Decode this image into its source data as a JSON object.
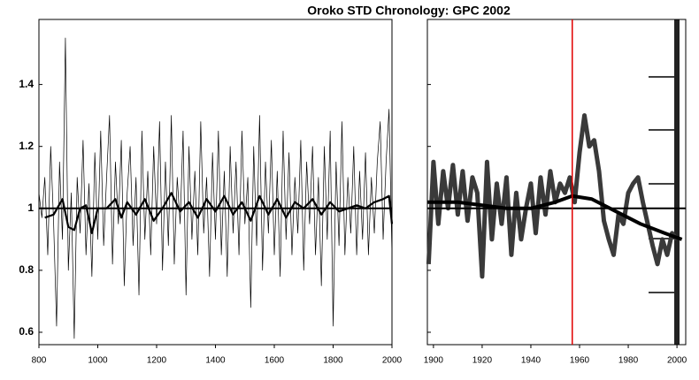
{
  "chart_data": [
    {
      "type": "line",
      "title": "Oroko STD Chronology: GPC 2002",
      "xlim": [
        800,
        2000
      ],
      "ylim": [
        0.56,
        1.61
      ],
      "xticks": [
        800,
        1000,
        1200,
        1400,
        1600,
        1800,
        2000
      ],
      "yticks": [
        0.6,
        0.8,
        {
          "value": 1,
          "label": "1"
        },
        1.2,
        1.4
      ],
      "ytick_labels": true,
      "hline": 1,
      "series": [
        {
          "color": "#000000",
          "width": 0.7,
          "x": [
            800,
            810,
            820,
            830,
            840,
            850,
            860,
            870,
            880,
            890,
            900,
            910,
            920,
            930,
            940,
            950,
            960,
            970,
            980,
            990,
            1000,
            1010,
            1020,
            1030,
            1040,
            1050,
            1060,
            1070,
            1080,
            1090,
            1100,
            1110,
            1120,
            1130,
            1140,
            1150,
            1160,
            1170,
            1180,
            1190,
            1200,
            1210,
            1220,
            1230,
            1240,
            1250,
            1260,
            1270,
            1280,
            1290,
            1300,
            1310,
            1320,
            1330,
            1340,
            1350,
            1360,
            1370,
            1380,
            1390,
            1400,
            1410,
            1420,
            1430,
            1440,
            1450,
            1460,
            1470,
            1480,
            1490,
            1500,
            1510,
            1520,
            1530,
            1540,
            1550,
            1560,
            1570,
            1580,
            1590,
            1600,
            1610,
            1620,
            1630,
            1640,
            1650,
            1660,
            1670,
            1680,
            1690,
            1700,
            1710,
            1720,
            1730,
            1740,
            1750,
            1760,
            1770,
            1780,
            1790,
            1800,
            1810,
            1820,
            1830,
            1840,
            1850,
            1860,
            1870,
            1880,
            1890,
            1900,
            1910,
            1920,
            1930,
            1940,
            1950,
            1960,
            1970,
            1980,
            1990,
            2000
          ],
          "values": [
            1.05,
            0.97,
            1.1,
            0.85,
            1.2,
            0.95,
            0.62,
            1.15,
            0.9,
            1.55,
            0.8,
            1.05,
            0.58,
            1.1,
            0.92,
            1.22,
            0.85,
            1.08,
            0.78,
            1.18,
            0.9,
            1.25,
            0.88,
            1.1,
            1.3,
            0.82,
            1.15,
            0.95,
            1.22,
            0.75,
            1.05,
            1.2,
            0.88,
            1.1,
            0.72,
            1.25,
            0.9,
            1.12,
            0.85,
            1.2,
            0.95,
            1.28,
            0.8,
            1.15,
            0.88,
            1.3,
            0.82,
            1.1,
            0.95,
            1.25,
            0.72,
            1.2,
            0.9,
            1.12,
            0.85,
            1.28,
            0.92,
            1.1,
            0.78,
            1.18,
            0.9,
            1.25,
            0.85,
            1.12,
            0.78,
            1.2,
            0.92,
            1.15,
            0.85,
            1.25,
            0.95,
            1.1,
            0.68,
            1.2,
            0.88,
            1.3,
            0.8,
            1.15,
            0.92,
            1.22,
            0.85,
            1.12,
            0.78,
            1.25,
            0.9,
            1.18,
            0.85,
            1.1,
            0.92,
            1.22,
            0.8,
            1.15,
            0.95,
            1.2,
            0.85,
            1.1,
            0.75,
            1.2,
            0.9,
            1.25,
            0.62,
            1.15,
            0.88,
            1.28,
            0.85,
            1.1,
            0.92,
            1.2,
            0.85,
            1.12,
            0.9,
            1.18,
            0.85,
            1.1,
            0.92,
            1.15,
            1.28,
            0.9,
            1.15,
            1.32,
            0.85
          ]
        },
        {
          "color": "#000000",
          "width": 2.2,
          "x": [
            820,
            850,
            880,
            900,
            920,
            940,
            960,
            980,
            1000,
            1030,
            1060,
            1080,
            1100,
            1130,
            1160,
            1190,
            1220,
            1250,
            1280,
            1310,
            1340,
            1370,
            1400,
            1430,
            1460,
            1490,
            1520,
            1550,
            1580,
            1610,
            1640,
            1670,
            1700,
            1730,
            1760,
            1790,
            1820,
            1850,
            1880,
            1910,
            1940,
            1970,
            1990,
            2000
          ],
          "values": [
            0.97,
            0.98,
            1.03,
            0.94,
            0.93,
            1.0,
            1.01,
            0.92,
            1.0,
            1.0,
            1.03,
            0.97,
            1.02,
            0.98,
            1.03,
            0.96,
            1.0,
            1.05,
            0.99,
            1.02,
            0.97,
            1.03,
            0.99,
            1.04,
            0.98,
            1.02,
            0.96,
            1.04,
            0.98,
            1.03,
            0.97,
            1.02,
            1.0,
            1.03,
            0.98,
            1.02,
            0.99,
            1.0,
            1.01,
            1.0,
            1.02,
            1.03,
            1.04,
            0.95
          ]
        }
      ]
    },
    {
      "type": "line",
      "xlim": [
        1897.5,
        2003.6
      ],
      "ylim": [
        0.56,
        1.61
      ],
      "xticks": [
        1900,
        1920,
        1940,
        1960,
        1980,
        2000
      ],
      "yticks": [
        0.6,
        0.8,
        1,
        1.2,
        1.4
      ],
      "ytick_labels": false,
      "hline": 1,
      "vline": 1957,
      "vline_color": "#e00000",
      "series": [
        {
          "color": "#3a3a3a",
          "width": 5,
          "x": [
            1898,
            1900,
            1902,
            1904,
            1906,
            1908,
            1910,
            1912,
            1914,
            1916,
            1918,
            1920,
            1922,
            1924,
            1926,
            1928,
            1930,
            1932,
            1934,
            1936,
            1938,
            1940,
            1942,
            1944,
            1946,
            1948,
            1950,
            1952,
            1954,
            1956,
            1958,
            1960,
            1962,
            1964,
            1966,
            1968,
            1970,
            1972,
            1974,
            1976,
            1978,
            1980,
            1982,
            1984,
            1986,
            1988,
            1990,
            1992,
            1994,
            1996,
            1998,
            2000
          ],
          "values": [
            0.82,
            1.15,
            0.95,
            1.12,
            1.0,
            1.14,
            0.98,
            1.12,
            0.96,
            1.1,
            1.05,
            0.78,
            1.15,
            0.9,
            1.08,
            0.95,
            1.1,
            0.85,
            1.05,
            0.9,
            1.0,
            1.08,
            0.92,
            1.1,
            0.98,
            1.12,
            1.02,
            1.08,
            1.05,
            1.1,
            1.02,
            1.18,
            1.3,
            1.2,
            1.22,
            1.12,
            0.96,
            0.9,
            0.85,
            0.98,
            0.95,
            1.05,
            1.08,
            1.1,
            1.02,
            0.95,
            0.88,
            0.82,
            0.9,
            0.85,
            0.92,
            0.9
          ]
        },
        {
          "color": "#000000",
          "width": 4,
          "x": [
            1897.5,
            1910,
            1920,
            1930,
            1940,
            1950,
            1957,
            1965,
            1975,
            1985,
            1995,
            2002
          ],
          "values": [
            1.02,
            1.02,
            1.01,
            1.0,
            1.0,
            1.02,
            1.04,
            1.03,
            0.99,
            0.95,
            0.92,
            0.9
          ]
        }
      ]
    }
  ]
}
